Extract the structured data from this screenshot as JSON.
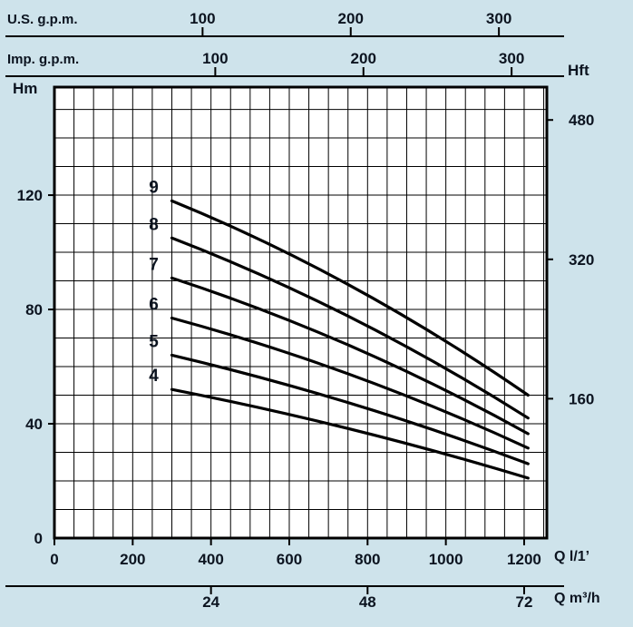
{
  "page": {
    "background_color": "#cee3eb",
    "ink_color": "#0c1420",
    "grid_color": "#000000",
    "plot_background": "#ffffff"
  },
  "chart_data": {
    "type": "line",
    "axes": {
      "x_us_gpm": {
        "label": "U.S. g.p.m.",
        "ticks": [
          100,
          200,
          300
        ]
      },
      "x_imp_gpm": {
        "label": "Imp. g.p.m.",
        "ticks": [
          100,
          200,
          300
        ]
      },
      "x_bottom": {
        "label": "Q l/1’",
        "ticks": [
          0,
          200,
          400,
          600,
          800,
          1000,
          1200
        ],
        "range": [
          0,
          1258
        ],
        "minor_step": 50
      },
      "x_m3h": {
        "label": "Q m³/h",
        "ticks": [
          24,
          48,
          72
        ]
      },
      "y_left": {
        "label": "Hm",
        "ticks": [
          0,
          40,
          80,
          120
        ],
        "range": [
          0,
          157.8
        ],
        "minor_step": 10
      },
      "y_right": {
        "label": "Hft",
        "ticks": [
          160,
          320,
          480
        ]
      }
    },
    "grid": true,
    "series": [
      {
        "name": "9",
        "points": [
          [
            300,
            118
          ],
          [
            760,
            88
          ],
          [
            1210,
            50
          ]
        ]
      },
      {
        "name": "8",
        "points": [
          [
            300,
            105
          ],
          [
            760,
            77
          ],
          [
            1210,
            42
          ]
        ]
      },
      {
        "name": "7",
        "points": [
          [
            300,
            91
          ],
          [
            760,
            67
          ],
          [
            1210,
            36.5
          ]
        ]
      },
      {
        "name": "6",
        "points": [
          [
            300,
            77
          ],
          [
            760,
            57
          ],
          [
            1210,
            31.5
          ]
        ]
      },
      {
        "name": "5",
        "points": [
          [
            300,
            64
          ],
          [
            760,
            47
          ],
          [
            1210,
            26
          ]
        ]
      },
      {
        "name": "4",
        "points": [
          [
            300,
            52
          ],
          [
            760,
            38
          ],
          [
            1210,
            21
          ]
        ]
      }
    ]
  }
}
